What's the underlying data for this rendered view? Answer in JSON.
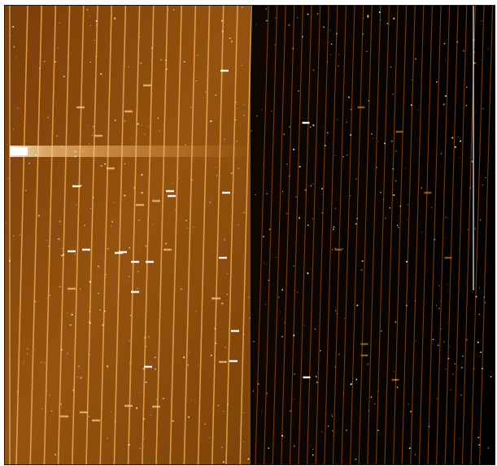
{
  "image": {
    "kind": "echelle-spectrograph-frame",
    "panels": [
      {
        "name": "left-panel",
        "tone": "bright-orange",
        "background_color": "#8a4a0c",
        "fiber_color": "#ffb25a"
      },
      {
        "name": "right-panel",
        "tone": "dark",
        "background_color": "#060201",
        "fiber_color": "#c96a1a"
      }
    ],
    "accent_color": "#ffffff",
    "frame_border_color": "#1a1a1a"
  }
}
